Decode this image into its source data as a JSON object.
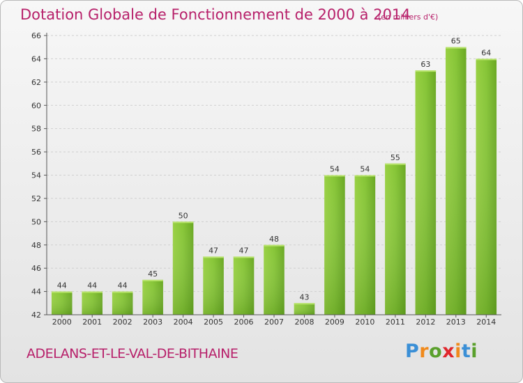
{
  "header": {
    "title": "Dotation Globale de Fonctionnement de 2000 à 2014",
    "unit": "(en milliers d'€)"
  },
  "footer": {
    "commune": "ADELANS-ET-LE-VAL-DE-BITHAINE",
    "logo_letters": [
      "P",
      "r",
      "o",
      "x",
      "i",
      "t",
      "i"
    ],
    "logo_colors": [
      "#3a8fd6",
      "#f08a1c",
      "#5aa02c",
      "#e0262c",
      "#f08a1c",
      "#3a8fd6",
      "#5aa02c"
    ]
  },
  "chart_data": {
    "type": "bar",
    "categories": [
      "2000",
      "2001",
      "2002",
      "2003",
      "2004",
      "2005",
      "2006",
      "2007",
      "2008",
      "2009",
      "2010",
      "2011",
      "2012",
      "2013",
      "2014"
    ],
    "values": [
      44,
      44,
      44,
      45,
      50,
      47,
      47,
      48,
      43,
      54,
      54,
      55,
      63,
      65,
      64
    ],
    "ylim": [
      42,
      66
    ],
    "yticks": [
      42,
      44,
      46,
      48,
      50,
      52,
      54,
      56,
      58,
      60,
      62,
      64,
      66
    ],
    "grid": true,
    "bar_color": "#7cbf2e",
    "text_color": "#b7206a"
  }
}
